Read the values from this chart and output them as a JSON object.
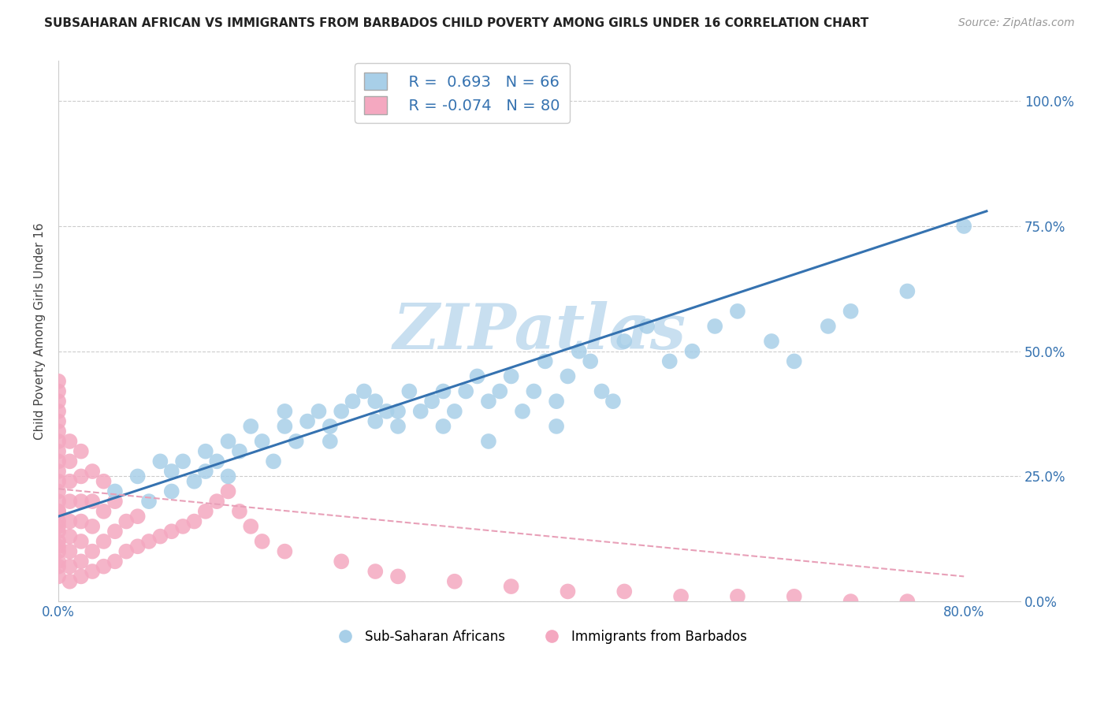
{
  "title": "SUBSAHARAN AFRICAN VS IMMIGRANTS FROM BARBADOS CHILD POVERTY AMONG GIRLS UNDER 16 CORRELATION CHART",
  "source": "Source: ZipAtlas.com",
  "ylabel": "Child Poverty Among Girls Under 16",
  "r_blue": 0.693,
  "n_blue": 66,
  "r_pink": -0.074,
  "n_pink": 80,
  "blue_color": "#a8cfe8",
  "pink_color": "#f4a8c0",
  "line_blue": "#3572b0",
  "line_pink": "#e8a0b8",
  "legend_r_color": "#3572b0",
  "watermark_color": "#c8dff0",
  "x_ticks": [
    0.0,
    0.1,
    0.2,
    0.3,
    0.4,
    0.5,
    0.6,
    0.7,
    0.8
  ],
  "y_ticks": [
    0.0,
    0.25,
    0.5,
    0.75,
    1.0
  ],
  "y_tick_labels": [
    "0.0%",
    "25.0%",
    "50.0%",
    "75.0%",
    "100.0%"
  ],
  "xlim": [
    0.0,
    0.85
  ],
  "ylim": [
    0.0,
    1.08
  ],
  "blue_line_x0": 0.0,
  "blue_line_y0": 0.17,
  "blue_line_x1": 0.82,
  "blue_line_y1": 0.78,
  "pink_line_x0": 0.0,
  "pink_line_y0": 0.225,
  "pink_line_x1": 0.8,
  "pink_line_y1": 0.05,
  "blue_scatter_x": [
    0.05,
    0.07,
    0.08,
    0.09,
    0.1,
    0.1,
    0.11,
    0.12,
    0.13,
    0.13,
    0.14,
    0.15,
    0.15,
    0.16,
    0.17,
    0.18,
    0.19,
    0.2,
    0.2,
    0.21,
    0.22,
    0.23,
    0.24,
    0.24,
    0.25,
    0.26,
    0.27,
    0.28,
    0.28,
    0.29,
    0.3,
    0.3,
    0.31,
    0.32,
    0.33,
    0.34,
    0.34,
    0.35,
    0.36,
    0.37,
    0.38,
    0.38,
    0.39,
    0.4,
    0.41,
    0.42,
    0.43,
    0.44,
    0.44,
    0.45,
    0.46,
    0.47,
    0.48,
    0.49,
    0.5,
    0.52,
    0.54,
    0.56,
    0.58,
    0.6,
    0.63,
    0.65,
    0.68,
    0.7,
    0.75,
    0.8
  ],
  "blue_scatter_y": [
    0.22,
    0.25,
    0.2,
    0.28,
    0.22,
    0.26,
    0.28,
    0.24,
    0.3,
    0.26,
    0.28,
    0.32,
    0.25,
    0.3,
    0.35,
    0.32,
    0.28,
    0.35,
    0.38,
    0.32,
    0.36,
    0.38,
    0.35,
    0.32,
    0.38,
    0.4,
    0.42,
    0.36,
    0.4,
    0.38,
    0.35,
    0.38,
    0.42,
    0.38,
    0.4,
    0.42,
    0.35,
    0.38,
    0.42,
    0.45,
    0.4,
    0.32,
    0.42,
    0.45,
    0.38,
    0.42,
    0.48,
    0.4,
    0.35,
    0.45,
    0.5,
    0.48,
    0.42,
    0.4,
    0.52,
    0.55,
    0.48,
    0.5,
    0.55,
    0.58,
    0.52,
    0.48,
    0.55,
    0.58,
    0.62,
    0.75
  ],
  "pink_scatter_x": [
    0.0,
    0.0,
    0.0,
    0.0,
    0.0,
    0.0,
    0.0,
    0.0,
    0.0,
    0.0,
    0.0,
    0.0,
    0.0,
    0.0,
    0.0,
    0.0,
    0.0,
    0.0,
    0.0,
    0.0,
    0.0,
    0.0,
    0.0,
    0.0,
    0.01,
    0.01,
    0.01,
    0.01,
    0.01,
    0.01,
    0.01,
    0.01,
    0.01,
    0.02,
    0.02,
    0.02,
    0.02,
    0.02,
    0.02,
    0.02,
    0.03,
    0.03,
    0.03,
    0.03,
    0.03,
    0.04,
    0.04,
    0.04,
    0.04,
    0.05,
    0.05,
    0.05,
    0.06,
    0.06,
    0.07,
    0.07,
    0.08,
    0.09,
    0.1,
    0.11,
    0.12,
    0.13,
    0.14,
    0.15,
    0.16,
    0.17,
    0.18,
    0.2,
    0.25,
    0.28,
    0.3,
    0.35,
    0.4,
    0.45,
    0.5,
    0.55,
    0.6,
    0.65,
    0.7,
    0.75
  ],
  "pink_scatter_y": [
    0.05,
    0.07,
    0.1,
    0.12,
    0.14,
    0.16,
    0.18,
    0.2,
    0.22,
    0.24,
    0.26,
    0.28,
    0.3,
    0.32,
    0.34,
    0.36,
    0.38,
    0.4,
    0.42,
    0.44,
    0.08,
    0.11,
    0.15,
    0.18,
    0.04,
    0.07,
    0.1,
    0.13,
    0.16,
    0.2,
    0.24,
    0.28,
    0.32,
    0.05,
    0.08,
    0.12,
    0.16,
    0.2,
    0.25,
    0.3,
    0.06,
    0.1,
    0.15,
    0.2,
    0.26,
    0.07,
    0.12,
    0.18,
    0.24,
    0.08,
    0.14,
    0.2,
    0.1,
    0.16,
    0.11,
    0.17,
    0.12,
    0.13,
    0.14,
    0.15,
    0.16,
    0.18,
    0.2,
    0.22,
    0.18,
    0.15,
    0.12,
    0.1,
    0.08,
    0.06,
    0.05,
    0.04,
    0.03,
    0.02,
    0.02,
    0.01,
    0.01,
    0.01,
    0.0,
    0.0
  ],
  "legend_label_blue": "Sub-Saharan Africans",
  "legend_label_pink": "Immigrants from Barbados",
  "grid_color": "#cccccc"
}
